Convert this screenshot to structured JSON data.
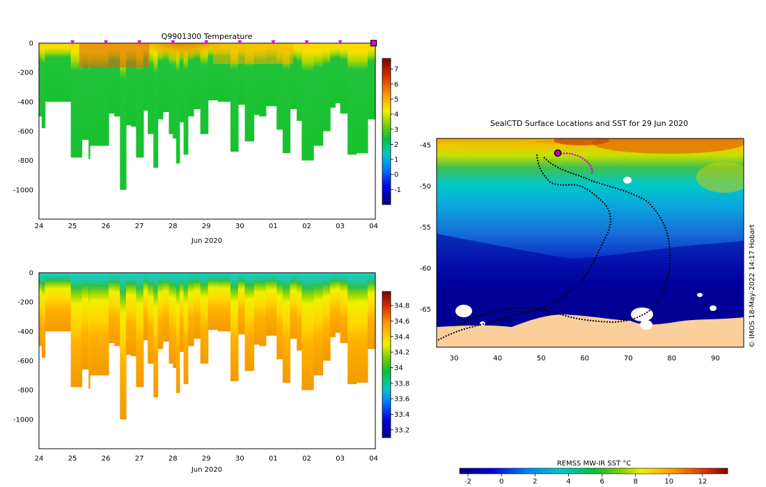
{
  "chart_data": [
    {
      "type": "heatmap",
      "title": "Q9901300  Temperature",
      "xlabel": "Jun 2020",
      "ylabel": "",
      "x_ticks": [
        "24",
        "25",
        "26",
        "27",
        "28",
        "29",
        "30",
        "01",
        "02",
        "03",
        "04"
      ],
      "y_ticks": [
        "0",
        "-200",
        "-400",
        "-600",
        "-800",
        "-1000"
      ],
      "xlim": [
        0,
        10.05
      ],
      "ylim": [
        -1200,
        0
      ],
      "colorbar": {
        "ticks": [
          "-1",
          "0",
          "1",
          "2",
          "3",
          "4",
          "5",
          "6",
          "7"
        ],
        "range": [
          -2,
          7.7
        ]
      },
      "profile_markers_day": [
        1,
        2,
        3,
        4,
        5,
        6,
        7,
        8,
        9
      ],
      "last_profile_marker_day": 10,
      "profiles": [
        {
          "x0": 0.0,
          "x1": 0.08,
          "bottom": -500
        },
        {
          "x0": 0.08,
          "x1": 0.18,
          "bottom": -580
        },
        {
          "x0": 0.18,
          "x1": 0.45,
          "bottom": -400
        },
        {
          "x0": 0.45,
          "x1": 0.95,
          "bottom": -400
        },
        {
          "x0": 0.95,
          "x1": 1.28,
          "bottom": -780
        },
        {
          "x0": 1.28,
          "x1": 1.48,
          "bottom": -660
        },
        {
          "x0": 1.48,
          "x1": 1.52,
          "bottom": -790
        },
        {
          "x0": 1.52,
          "x1": 1.8,
          "bottom": -700
        },
        {
          "x0": 1.8,
          "x1": 2.08,
          "bottom": -700
        },
        {
          "x0": 2.08,
          "x1": 2.25,
          "bottom": -480
        },
        {
          "x0": 2.25,
          "x1": 2.42,
          "bottom": -500
        },
        {
          "x0": 2.42,
          "x1": 2.6,
          "bottom": -1000
        },
        {
          "x0": 2.6,
          "x1": 2.75,
          "bottom": -560
        },
        {
          "x0": 2.75,
          "x1": 2.9,
          "bottom": -570
        },
        {
          "x0": 2.9,
          "x1": 3.12,
          "bottom": -780
        },
        {
          "x0": 3.12,
          "x1": 3.25,
          "bottom": -460
        },
        {
          "x0": 3.25,
          "x1": 3.42,
          "bottom": -620
        },
        {
          "x0": 3.42,
          "x1": 3.55,
          "bottom": -850
        },
        {
          "x0": 3.55,
          "x1": 3.7,
          "bottom": -520
        },
        {
          "x0": 3.7,
          "x1": 3.88,
          "bottom": -470
        },
        {
          "x0": 3.88,
          "x1": 4.0,
          "bottom": -620
        },
        {
          "x0": 4.0,
          "x1": 4.1,
          "bottom": -650
        },
        {
          "x0": 4.1,
          "x1": 4.2,
          "bottom": -820
        },
        {
          "x0": 4.2,
          "x1": 4.32,
          "bottom": -540
        },
        {
          "x0": 4.32,
          "x1": 4.45,
          "bottom": -760
        },
        {
          "x0": 4.45,
          "x1": 4.62,
          "bottom": -500
        },
        {
          "x0": 4.62,
          "x1": 4.82,
          "bottom": -450
        },
        {
          "x0": 4.82,
          "x1": 5.05,
          "bottom": -620
        },
        {
          "x0": 5.05,
          "x1": 5.35,
          "bottom": -390
        },
        {
          "x0": 5.35,
          "x1": 5.72,
          "bottom": -400
        },
        {
          "x0": 5.72,
          "x1": 5.95,
          "bottom": -740
        },
        {
          "x0": 5.95,
          "x1": 6.15,
          "bottom": -420
        },
        {
          "x0": 6.15,
          "x1": 6.42,
          "bottom": -670
        },
        {
          "x0": 6.42,
          "x1": 6.58,
          "bottom": -490
        },
        {
          "x0": 6.58,
          "x1": 6.78,
          "bottom": -500
        },
        {
          "x0": 6.78,
          "x1": 7.1,
          "bottom": -430
        },
        {
          "x0": 7.1,
          "x1": 7.28,
          "bottom": -590
        },
        {
          "x0": 7.28,
          "x1": 7.5,
          "bottom": -750
        },
        {
          "x0": 7.5,
          "x1": 7.7,
          "bottom": -450
        },
        {
          "x0": 7.7,
          "x1": 7.85,
          "bottom": -530
        },
        {
          "x0": 7.85,
          "x1": 8.2,
          "bottom": -800
        },
        {
          "x0": 8.2,
          "x1": 8.48,
          "bottom": -700
        },
        {
          "x0": 8.48,
          "x1": 8.7,
          "bottom": -600
        },
        {
          "x0": 8.7,
          "x1": 8.85,
          "bottom": -440
        },
        {
          "x0": 8.85,
          "x1": 9.0,
          "bottom": -410
        },
        {
          "x0": 9.0,
          "x1": 9.22,
          "bottom": -480
        },
        {
          "x0": 9.22,
          "x1": 9.48,
          "bottom": -760
        },
        {
          "x0": 9.48,
          "x1": 9.82,
          "bottom": -750
        },
        {
          "x0": 9.82,
          "x1": 10.05,
          "bottom": -520
        }
      ]
    },
    {
      "type": "heatmap",
      "title": "",
      "xlabel": "Jun 2020",
      "ylabel": "",
      "x_ticks": [
        "24",
        "25",
        "26",
        "27",
        "28",
        "29",
        "30",
        "01",
        "02",
        "03",
        "04"
      ],
      "y_ticks": [
        "0",
        "-200",
        "-400",
        "-600",
        "-800",
        "-1000"
      ],
      "xlim": [
        0,
        10.05
      ],
      "ylim": [
        -1200,
        0
      ],
      "colorbar": {
        "ticks": [
          "33.2",
          "33.4",
          "33.6",
          "33.8",
          "34",
          "34.2",
          "34.4",
          "34.6",
          "34.8"
        ],
        "range": [
          33.1,
          34.98
        ]
      }
    },
    {
      "type": "heatmap",
      "title": "SealCTD Surface Locations and SST for 29 Jun 2020",
      "xlabel": "",
      "ylabel": "",
      "x_ticks": [
        "30",
        "40",
        "50",
        "60",
        "70",
        "80",
        "90"
      ],
      "y_ticks": [
        "-45",
        "-50",
        "-55",
        "-60",
        "-65"
      ],
      "xlim": [
        26,
        96.5
      ],
      "ylim": [
        -69.6,
        -44.2
      ],
      "colorbar": {
        "label": "REMSS MW-IR SST °C",
        "ticks": [
          "-2",
          "0",
          "2",
          "4",
          "6",
          "8",
          "10",
          "12"
        ],
        "range": [
          -2.5,
          13.5
        ]
      },
      "current_position": {
        "lon": 53.8,
        "lat": -45.9
      }
    }
  ],
  "credit": "© IMOS 18-May-2022 14:17 Hobart"
}
